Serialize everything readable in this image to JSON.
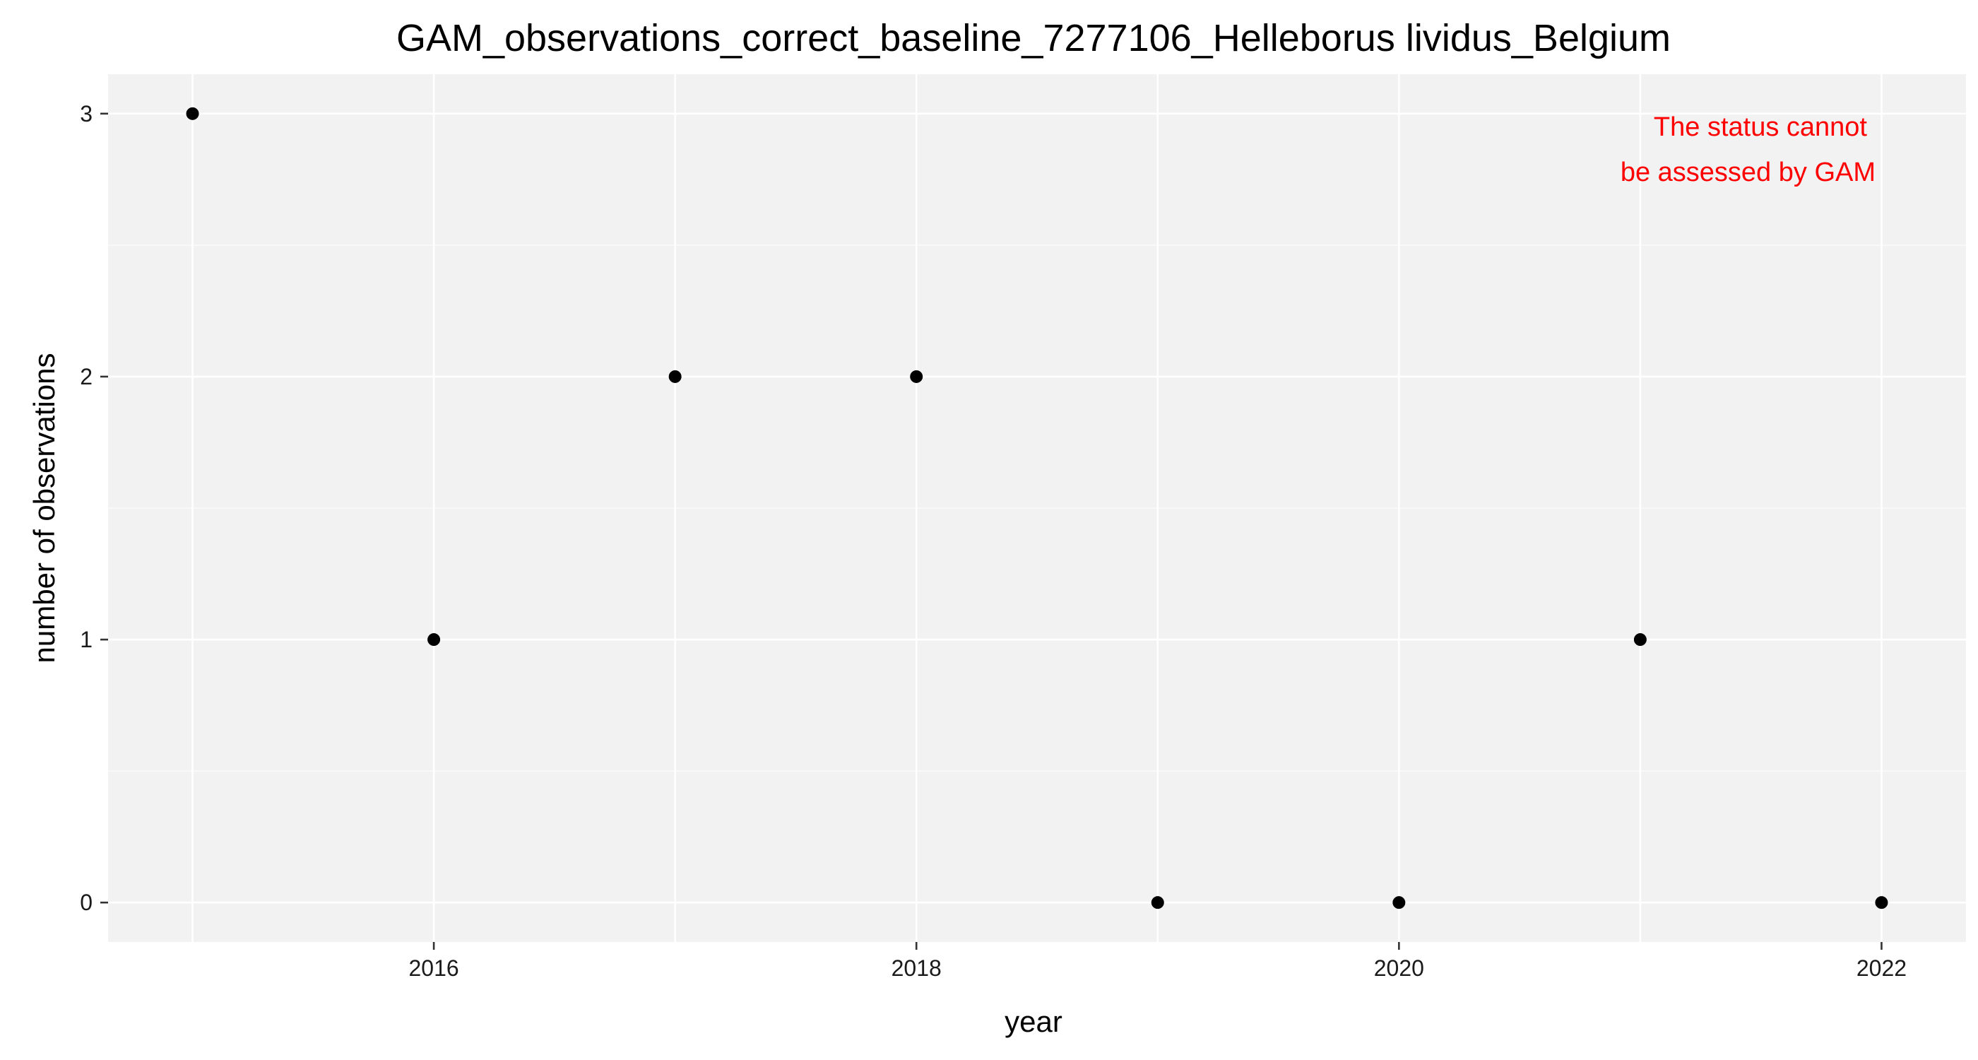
{
  "chart_data": {
    "type": "scatter",
    "title": "GAM_observations_correct_baseline_7277106_Helleborus lividus_Belgium",
    "xlabel": "year",
    "ylabel": "number of observations",
    "x": [
      2015,
      2016,
      2017,
      2018,
      2019,
      2020,
      2021,
      2022
    ],
    "y": [
      3,
      1,
      2,
      2,
      0,
      0,
      1,
      0
    ],
    "xlim": [
      2014.65,
      2022.35
    ],
    "ylim": [
      -0.15,
      3.15
    ],
    "x_ticks": [
      2016,
      2018,
      2020,
      2022
    ],
    "x_tick_labels": [
      "2016",
      "2018",
      "2020",
      "2022"
    ],
    "y_ticks": [
      0,
      1,
      2,
      3
    ],
    "y_tick_labels": [
      "0",
      "1",
      "2",
      "3"
    ],
    "grid": true,
    "annotation": {
      "lines": [
        "The status cannot",
        "be assessed by GAM"
      ],
      "color": "#ff0000",
      "placement": "top-right"
    },
    "colors": {
      "panel_background": "#f2f2f2",
      "grid_major": "#ffffff",
      "grid_minor": "#fafafa",
      "points": "#000000",
      "ticks": "#333333"
    }
  }
}
